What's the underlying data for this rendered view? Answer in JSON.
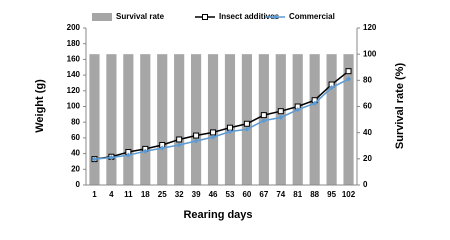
{
  "chart_data": {
    "type": "bar-line",
    "x_label": "Rearing days",
    "y_label": "Weight (g)",
    "y2_label": "Survival rate (%)",
    "categories": [
      "1",
      "4",
      "11",
      "18",
      "25",
      "32",
      "39",
      "46",
      "53",
      "60",
      "67",
      "74",
      "81",
      "88",
      "95",
      "102"
    ],
    "series": [
      {
        "name": "Survival rate",
        "type": "bar",
        "axis": "y2",
        "color": "#a6a6a6",
        "values": [
          100,
          100,
          100,
          100,
          100,
          100,
          100,
          100,
          100,
          100,
          100,
          100,
          100,
          100,
          100,
          100
        ]
      },
      {
        "name": "Insect additives",
        "type": "line",
        "color": "#000000",
        "values": [
          33,
          36,
          42,
          46,
          51,
          58,
          63,
          67,
          73,
          78,
          89,
          94,
          100,
          108,
          128,
          145
        ]
      },
      {
        "name": "Commercial",
        "type": "line",
        "color": "#5b9bd5",
        "values": [
          33,
          35,
          38,
          43,
          47,
          51,
          56,
          61,
          68,
          71,
          82,
          86,
          96,
          104,
          124,
          135
        ]
      }
    ],
    "ylim": [
      0,
      200
    ],
    "yticks": [
      0,
      20,
      40,
      60,
      80,
      100,
      120,
      140,
      160,
      180,
      200
    ],
    "y2lim": [
      0,
      120
    ],
    "y2ticks": [
      0,
      20,
      40,
      60,
      80,
      100,
      120
    ]
  }
}
